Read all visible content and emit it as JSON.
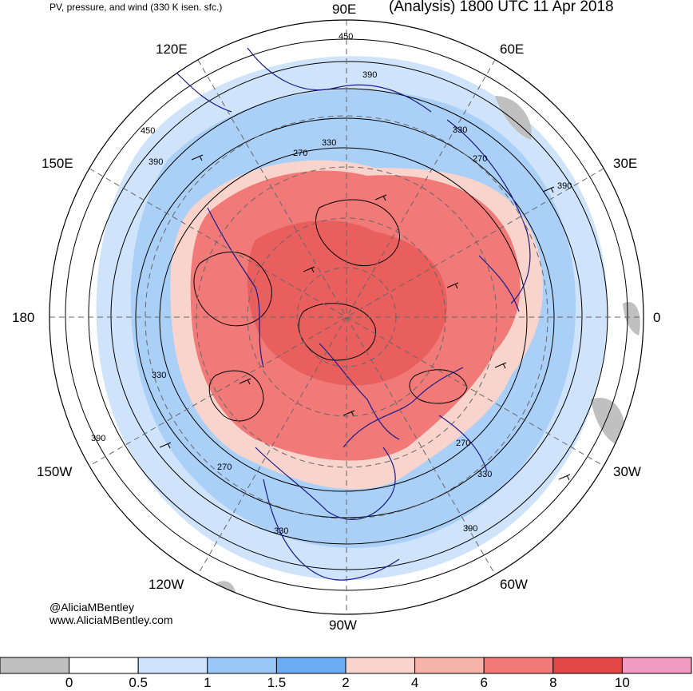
{
  "header": {
    "subtitle": "PV, pressure, and wind (330 K isen. sfc.)",
    "title": "(Analysis) 1800 UTC 11 Apr 2018"
  },
  "longitude_labels": {
    "deg90e": "90E",
    "deg60e": "60E",
    "deg30e": "30E",
    "deg0": "0",
    "deg30w": "30W",
    "deg60w": "60W",
    "deg90w": "90W",
    "deg120w": "120W",
    "deg150w": "150W",
    "deg180": "180",
    "deg150e": "150E",
    "deg120e": "120E"
  },
  "contour_labels": [
    "450",
    "390",
    "330",
    "270",
    "450",
    "390",
    "330",
    "390",
    "270",
    "330",
    "270",
    "330",
    "390",
    "330",
    "390",
    "270"
  ],
  "credit": {
    "handle": "@AliciaMBentley",
    "site": "www.AliciaMBentley.com"
  },
  "colorbar": {
    "colors": [
      "#c0c0c0",
      "#ffffff",
      "#cfe3fb",
      "#9bc8f7",
      "#6bacf2",
      "#f9d4cc",
      "#f6b3aa",
      "#f17a78",
      "#e24848",
      "#f09ac4"
    ],
    "ticks": [
      "0",
      "0.5",
      "1",
      "1.5",
      "2",
      "4",
      "6",
      "8",
      "10"
    ]
  }
}
